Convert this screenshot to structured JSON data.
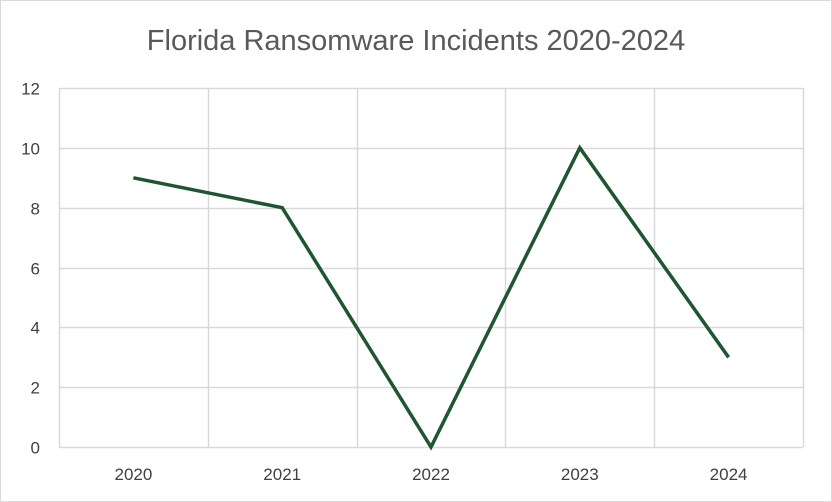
{
  "chart_data": {
    "type": "line",
    "title": "Florida Ransomware Incidents 2020-2024",
    "xlabel": "",
    "ylabel": "",
    "categories": [
      "2020",
      "2021",
      "2022",
      "2023",
      "2024"
    ],
    "series": [
      {
        "values": [
          9,
          8,
          0,
          10,
          3
        ]
      }
    ],
    "ylim": [
      0,
      12
    ],
    "yticks": [
      0,
      2,
      4,
      6,
      8,
      10,
      12
    ],
    "grid": true,
    "legend": "none",
    "colors": {
      "line": "#1e5631",
      "grid": "#d9d9d9",
      "text": "#404040",
      "title": "#595959"
    }
  }
}
